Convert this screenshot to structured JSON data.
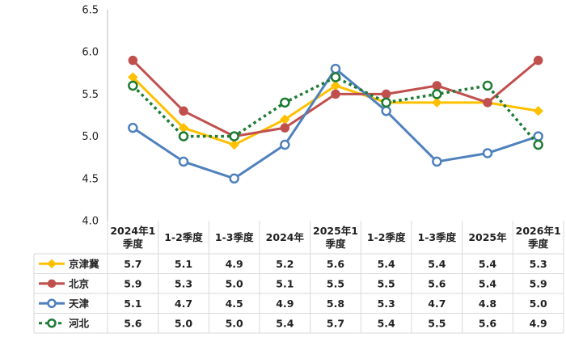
{
  "chart_data": {
    "type": "line",
    "categories": [
      [
        "2024年1",
        "季度"
      ],
      [
        "1-2季度"
      ],
      [
        "1-3季度"
      ],
      [
        "2024年"
      ],
      [
        "2025年1",
        "季度"
      ],
      [
        "1-2季度"
      ],
      [
        "1-3季度"
      ],
      [
        "2025年"
      ],
      [
        "2026年1",
        "季度"
      ]
    ],
    "yticks": [
      "4.0",
      "4.5",
      "5.0",
      "5.5",
      "6.0",
      "6.5"
    ],
    "ylim": [
      4.0,
      6.5
    ],
    "grid": false,
    "legend": "data-table-left",
    "series": [
      {
        "name": "京津冀",
        "color": "#FFC000",
        "marker": "diamond",
        "dashed": false,
        "values": [
          5.7,
          5.1,
          4.9,
          5.2,
          5.6,
          5.4,
          5.4,
          5.4,
          5.3
        ],
        "labels": [
          "5.7",
          "5.1",
          "4.9",
          "5.2",
          "5.6",
          "5.4",
          "5.4",
          "5.4",
          "5.3"
        ]
      },
      {
        "name": "北京",
        "color": "#C0504D",
        "marker": "circle-filled",
        "dashed": false,
        "values": [
          5.9,
          5.3,
          5.0,
          5.1,
          5.5,
          5.5,
          5.6,
          5.4,
          5.9
        ],
        "labels": [
          "5.9",
          "5.3",
          "5.0",
          "5.1",
          "5.5",
          "5.5",
          "5.6",
          "5.4",
          "5.9"
        ]
      },
      {
        "name": "天津",
        "color": "#4F81BD",
        "marker": "circle-open",
        "dashed": false,
        "values": [
          5.1,
          4.7,
          4.5,
          4.9,
          5.8,
          5.3,
          4.7,
          4.8,
          5.0
        ],
        "labels": [
          "5.1",
          "4.7",
          "4.5",
          "4.9",
          "5.8",
          "5.3",
          "4.7",
          "4.8",
          "5.0"
        ]
      },
      {
        "name": "河北",
        "color": "#1E7B34",
        "marker": "circle-open",
        "dashed": true,
        "values": [
          5.6,
          5.0,
          5.0,
          5.4,
          5.7,
          5.4,
          5.5,
          5.6,
          4.9
        ],
        "labels": [
          "5.6",
          "5.0",
          "5.0",
          "5.4",
          "5.7",
          "5.4",
          "5.5",
          "5.6",
          "4.9"
        ]
      }
    ]
  }
}
